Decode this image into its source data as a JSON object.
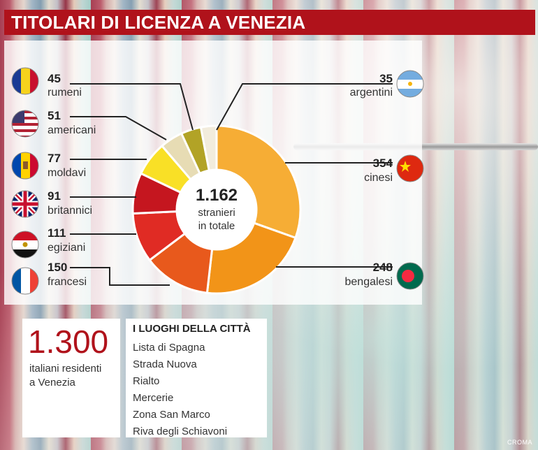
{
  "title": "TITOLARI DI LICENZA A VENEZIA",
  "chart_data": {
    "type": "pie",
    "donut": true,
    "center_value": "1.162",
    "center_label_lines": [
      "stranieri",
      "in totale"
    ],
    "slices": [
      {
        "name": "cinesi",
        "value": 354,
        "color": "#f6ad35",
        "flag": "china-flag-icon"
      },
      {
        "name": "bengalesi",
        "value": 248,
        "color": "#f29418",
        "flag": "bangladesh-flag-icon"
      },
      {
        "name": "francesi",
        "value": 150,
        "color": "#e8591c",
        "flag": "france-flag-icon"
      },
      {
        "name": "egiziani",
        "value": 111,
        "color": "#e02b24",
        "flag": "egypt-flag-icon"
      },
      {
        "name": "britannici",
        "value": 91,
        "color": "#c5161f",
        "flag": "uk-flag-icon"
      },
      {
        "name": "moldavi",
        "value": 77,
        "color": "#f9e026",
        "flag": "moldova-flag-icon"
      },
      {
        "name": "americani",
        "value": 51,
        "color": "#e7dcb4",
        "flag": "usa-flag-icon"
      },
      {
        "name": "rumeni",
        "value": 45,
        "color": "#b2a326",
        "flag": "romania-flag-icon"
      },
      {
        "name": "argentini",
        "value": 35,
        "color": "#f2ecdc",
        "flag": "argentina-flag-icon"
      }
    ]
  },
  "residents": {
    "value": "1.300",
    "label_lines": [
      "italiani residenti",
      "a Venezia"
    ]
  },
  "places": {
    "heading": "I LUOGHI DELLA CITTÀ",
    "items": [
      "Lista di Spagna",
      "Strada Nuova",
      "Rialto",
      "Mercerie",
      "Zona San Marco",
      "Riva degli Schiavoni"
    ]
  },
  "credit": "CROMA"
}
